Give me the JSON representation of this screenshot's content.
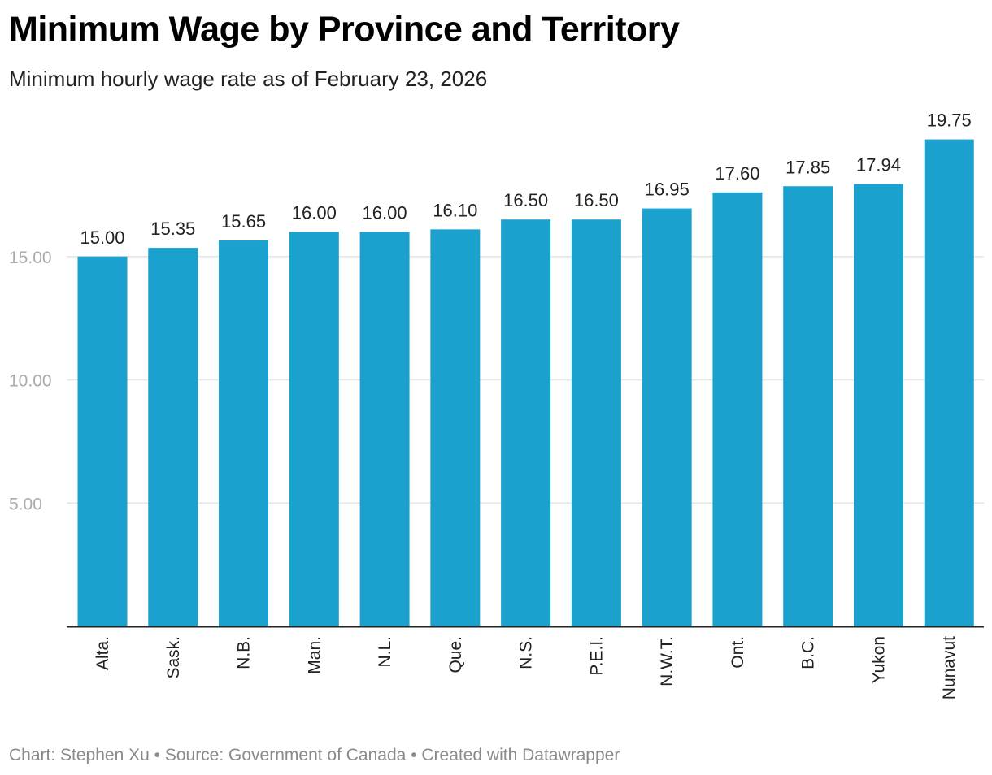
{
  "header": {
    "title": "Minimum Wage by Province and Territory",
    "subtitle": "Minimum hourly wage rate as of February 23, 2026"
  },
  "footer": {
    "chart_credit": "Chart: Stephen Xu",
    "separator": "•",
    "source": "Source: Government of Canada",
    "created_with": "Created with Datawrapper"
  },
  "colors": {
    "bar": "#1aa1ce",
    "grid": "#e4e4e4",
    "axis": "#222222",
    "tick_text": "#aaaaaa"
  },
  "chart_data": {
    "type": "bar",
    "title": "Minimum Wage by Province and Territory",
    "subtitle": "Minimum hourly wage rate as of February 23, 2026",
    "xlabel": "",
    "ylabel": "",
    "categories": [
      "Alta.",
      "Sask.",
      "N.B.",
      "Man.",
      "N.L.",
      "Que.",
      "N.S.",
      "P.E.I.",
      "N.W.T.",
      "Ont.",
      "B.C.",
      "Yukon",
      "Nunavut"
    ],
    "values": [
      15.0,
      15.35,
      15.65,
      16.0,
      16.0,
      16.1,
      16.5,
      16.5,
      16.95,
      17.6,
      17.85,
      17.94,
      19.75
    ],
    "value_labels": [
      "15.00",
      "15.35",
      "15.65",
      "16.00",
      "16.00",
      "16.10",
      "16.50",
      "16.50",
      "16.95",
      "17.60",
      "17.85",
      "17.94",
      "19.75"
    ],
    "yticks": [
      5,
      10,
      15
    ],
    "ytick_labels": [
      "5.00",
      "10.00",
      "15.00"
    ],
    "ylim": [
      0,
      20
    ],
    "grid": true
  }
}
